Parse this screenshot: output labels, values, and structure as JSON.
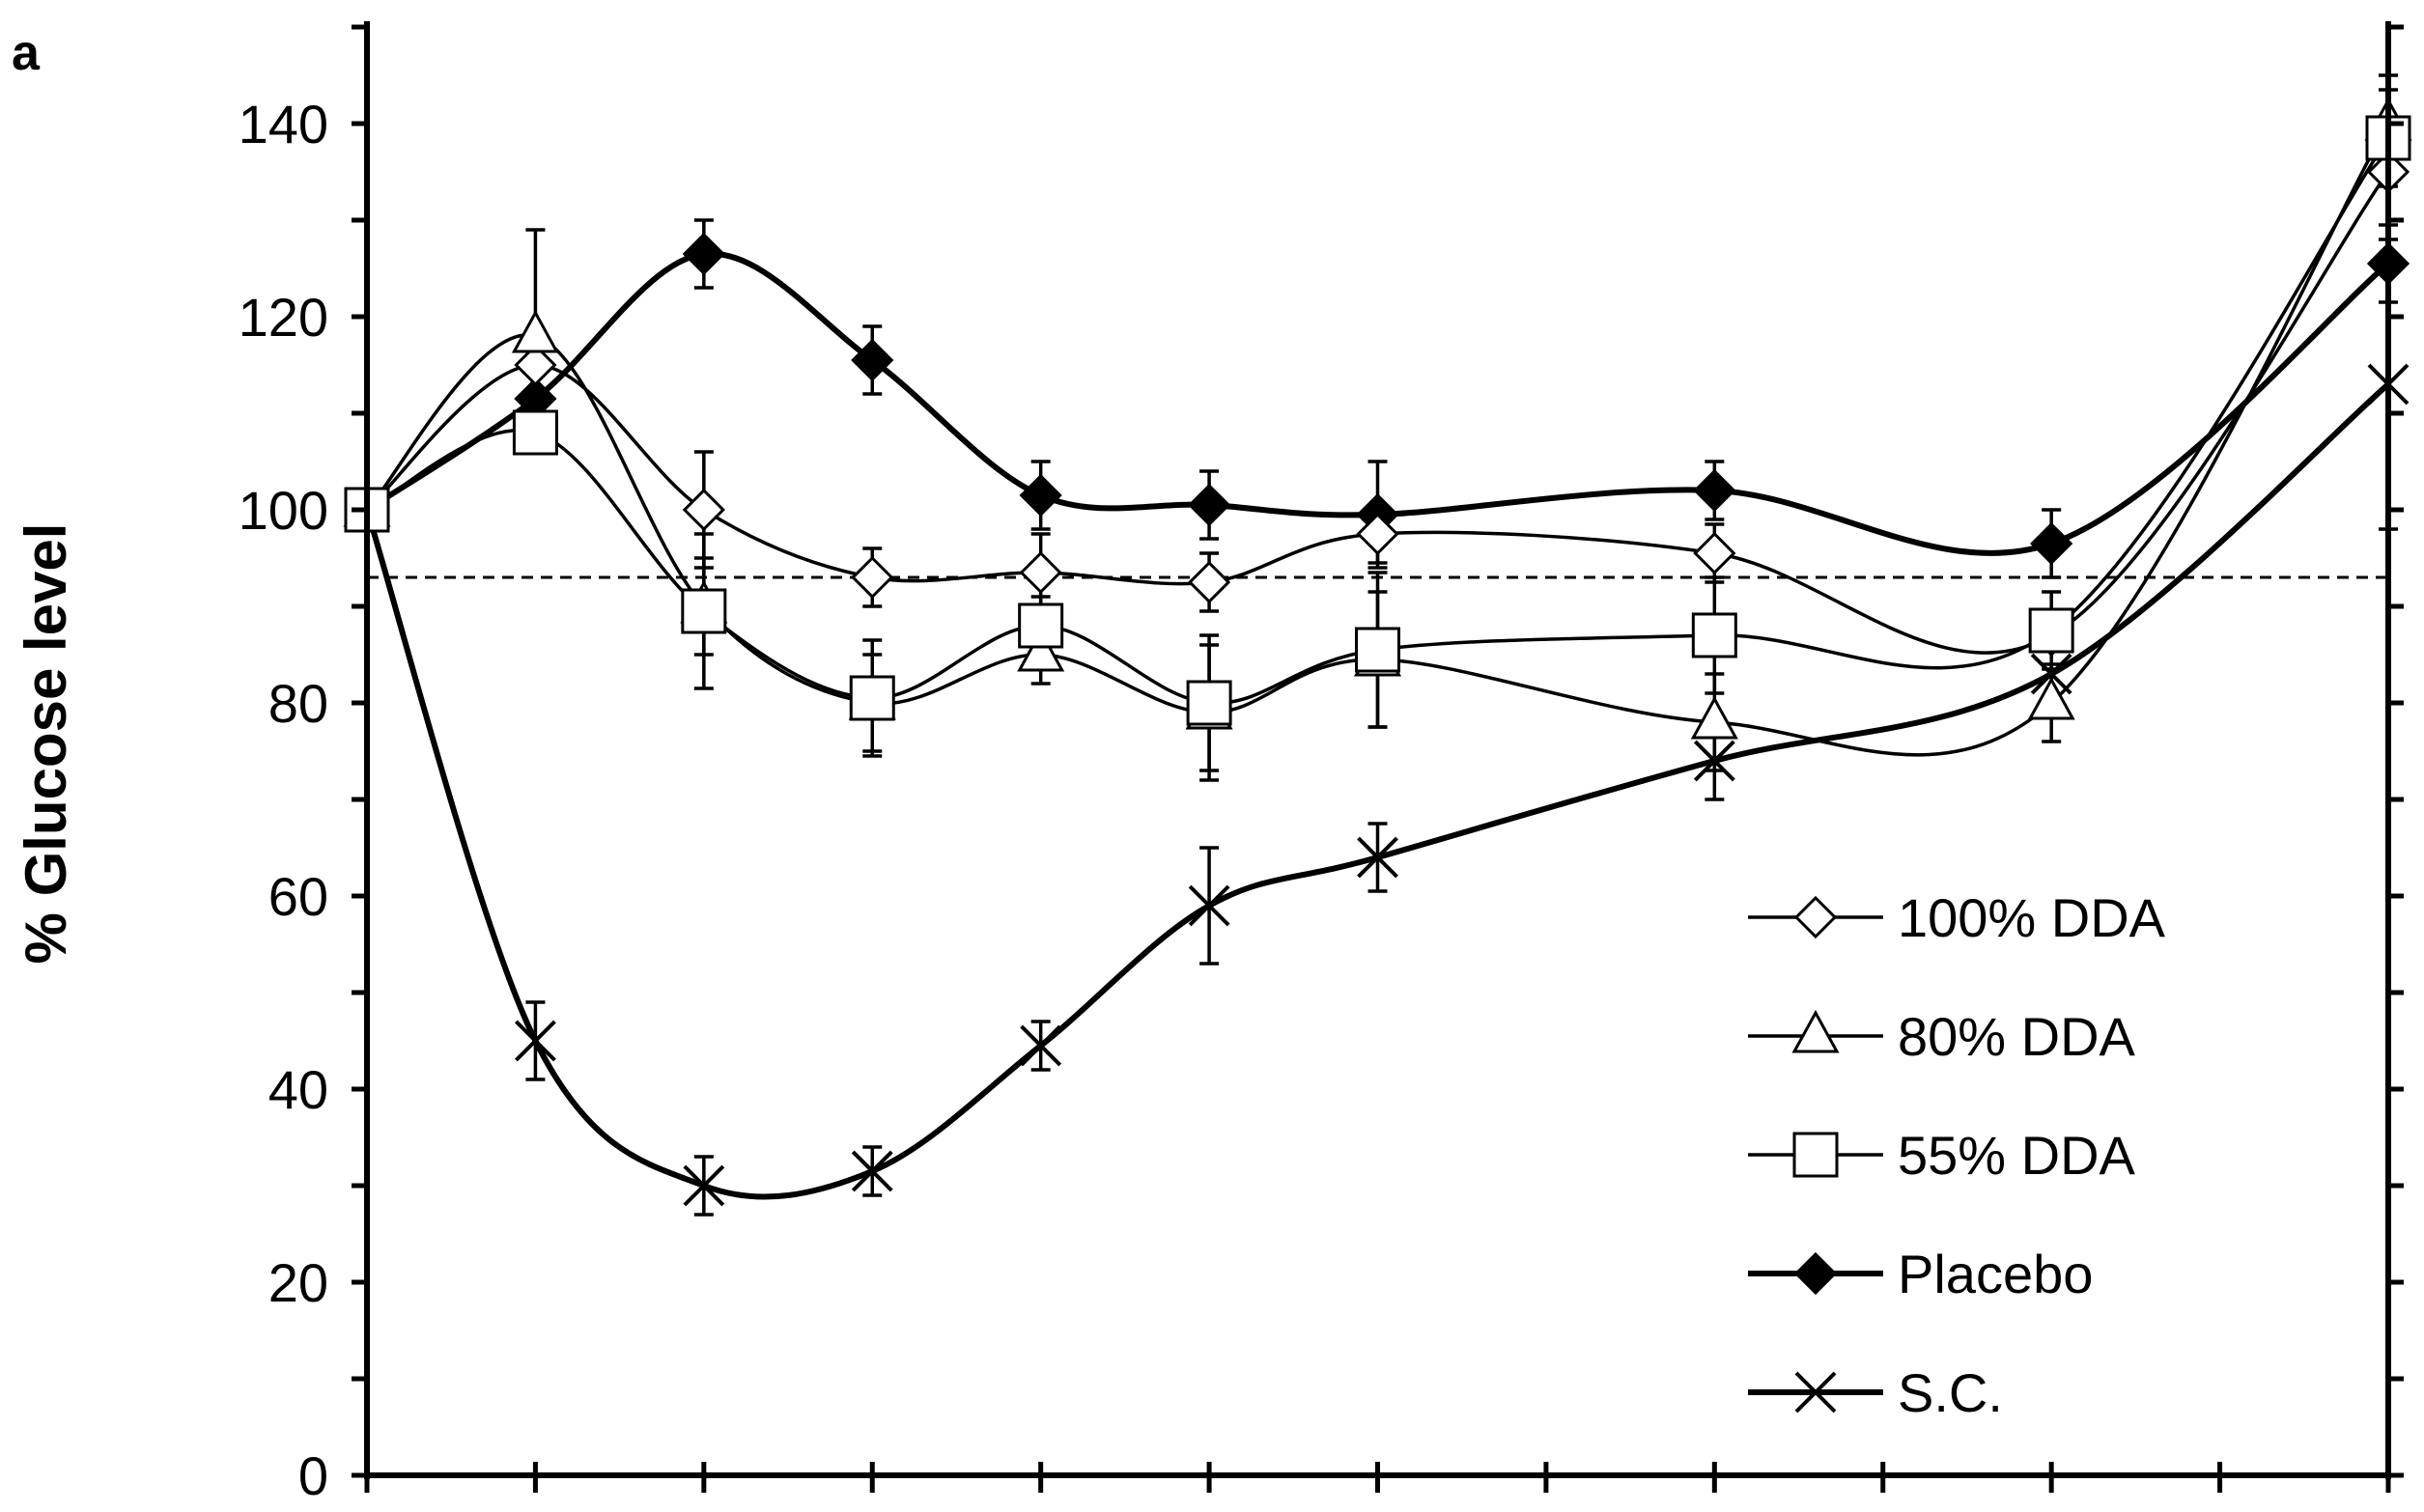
{
  "chart_data": {
    "type": "line",
    "panel_label": "a",
    "title": "",
    "xlabel": "",
    "ylabel": "% Glucose level",
    "ylim": [
      0,
      150
    ],
    "y_ticks": [
      0,
      20,
      40,
      60,
      80,
      100,
      120,
      140
    ],
    "x": [
      0,
      1,
      2,
      3,
      4,
      5,
      6,
      8,
      10,
      12
    ],
    "x_ticks": [
      0,
      1,
      2,
      3,
      4,
      5,
      6,
      7,
      8,
      9,
      10,
      11,
      12
    ],
    "xlim": [
      0,
      12
    ],
    "x_tick_labels_shown": false,
    "reference_line": {
      "y": 93,
      "style": "dashed"
    },
    "legend_position": "bottom-right",
    "series": [
      {
        "name": "100% DDA",
        "marker": "open-diamond",
        "weight": "thin",
        "values": [
          100,
          115,
          100,
          93,
          93.5,
          92.5,
          97.5,
          95.5,
          87,
          135
        ],
        "errors": [
          0,
          0,
          6,
          3,
          4,
          3,
          3,
          3,
          0,
          0
        ]
      },
      {
        "name": "80% DDA",
        "marker": "open-triangle",
        "weight": "thin",
        "values": [
          100,
          118,
          90,
          80,
          85,
          79,
          84.5,
          78,
          80,
          140
        ],
        "errors": [
          0,
          11,
          5,
          5,
          3,
          7,
          7,
          5,
          4,
          5
        ]
      },
      {
        "name": "55% DDA",
        "marker": "open-square",
        "weight": "thin",
        "values": [
          100,
          108,
          89.5,
          80.5,
          88,
          80,
          85.5,
          87,
          87.5,
          138.5
        ],
        "errors": [
          0,
          0,
          8,
          6,
          3,
          7,
          8,
          6,
          4,
          5
        ]
      },
      {
        "name": "Placebo",
        "marker": "filled-diamond",
        "weight": "thick",
        "values": [
          100,
          111.5,
          126.5,
          115.5,
          101.5,
          100.5,
          99.5,
          102,
          96.5,
          125.5
        ],
        "errors": [
          0,
          0,
          3.5,
          3.5,
          3.5,
          3.5,
          5.5,
          3,
          3.5,
          4
        ]
      },
      {
        "name": "S.C.",
        "marker": "x-cross",
        "weight": "thick",
        "values": [
          100,
          45,
          30,
          31.5,
          44.5,
          59,
          64,
          74,
          83,
          113
        ],
        "errors": [
          0,
          4,
          3,
          2.5,
          2.5,
          6,
          3.5,
          4,
          0,
          15
        ]
      }
    ]
  }
}
